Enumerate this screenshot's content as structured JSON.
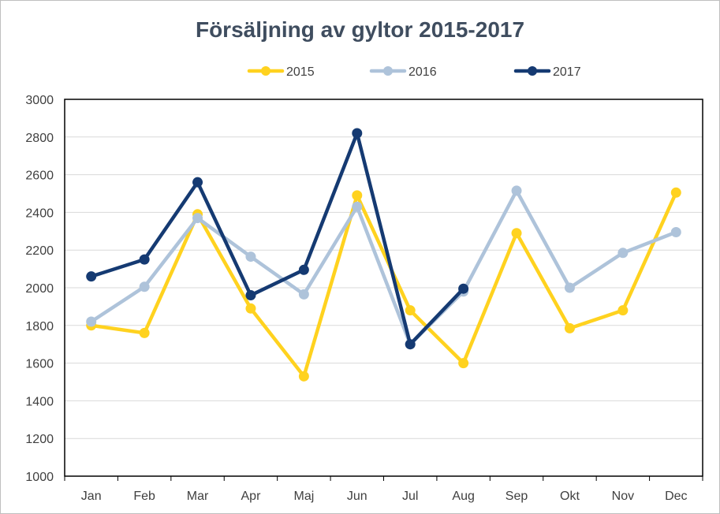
{
  "chart_data": {
    "type": "line",
    "title": "Försäljning av gyltor 2015-2017",
    "xlabel": "",
    "ylabel": "",
    "categories": [
      "Jan",
      "Feb",
      "Mar",
      "Apr",
      "Maj",
      "Jun",
      "Jul",
      "Aug",
      "Sep",
      "Okt",
      "Nov",
      "Dec"
    ],
    "ylim": [
      1000,
      3000
    ],
    "yticks": [
      1000,
      1200,
      1400,
      1600,
      1800,
      2000,
      2200,
      2400,
      2600,
      2800,
      3000
    ],
    "grid": true,
    "legend": "top-center",
    "series": [
      {
        "name": "2015",
        "color": "#ffd21f",
        "values": [
          1800,
          1760,
          2390,
          1890,
          1530,
          2490,
          1880,
          1600,
          2290,
          1785,
          1880,
          2505
        ]
      },
      {
        "name": "2016",
        "color": "#aec3da",
        "values": [
          1820,
          2005,
          2370,
          2165,
          1965,
          2430,
          1700,
          1980,
          2515,
          2000,
          2185,
          2295
        ]
      },
      {
        "name": "2017",
        "color": "#153a72",
        "values": [
          2060,
          2150,
          2560,
          1960,
          2095,
          2820,
          1700,
          1995,
          null,
          null,
          null,
          null
        ]
      }
    ]
  }
}
